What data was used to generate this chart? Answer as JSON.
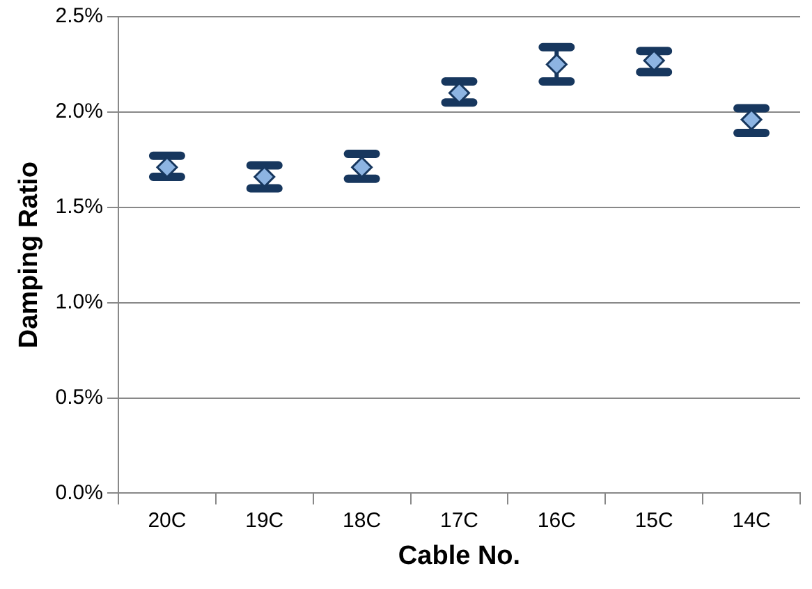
{
  "chart_data": {
    "type": "scatter",
    "xlabel": "Cable No.",
    "ylabel": "Damping Ratio",
    "categories": [
      "20C",
      "19C",
      "18C",
      "17C",
      "16C",
      "15C",
      "14C"
    ],
    "series": [
      {
        "color": "#8db4e2",
        "values": [
          1.71,
          1.66,
          1.71,
          2.1,
          2.25,
          2.27,
          1.96
        ],
        "errors": [
          [
            1.66,
            1.77
          ],
          [
            1.6,
            1.72
          ],
          [
            1.65,
            1.78
          ],
          [
            2.05,
            2.16
          ],
          [
            2.16,
            2.34
          ],
          [
            2.21,
            2.32
          ],
          [
            1.89,
            2.02
          ]
        ]
      }
    ],
    "ylim": [
      0,
      2.5
    ],
    "yticks": [
      {
        "value": 0,
        "label": "0.0%"
      },
      {
        "value": 0.5,
        "label": "0.5%"
      },
      {
        "value": 1,
        "label": "1.0%"
      },
      {
        "value": 1.5,
        "label": "1.5%"
      },
      {
        "value": 2,
        "label": "2.0%"
      },
      {
        "value": 2.5,
        "label": "2.5%"
      }
    ],
    "grid": "y",
    "legend": false,
    "marker": "diamond"
  }
}
